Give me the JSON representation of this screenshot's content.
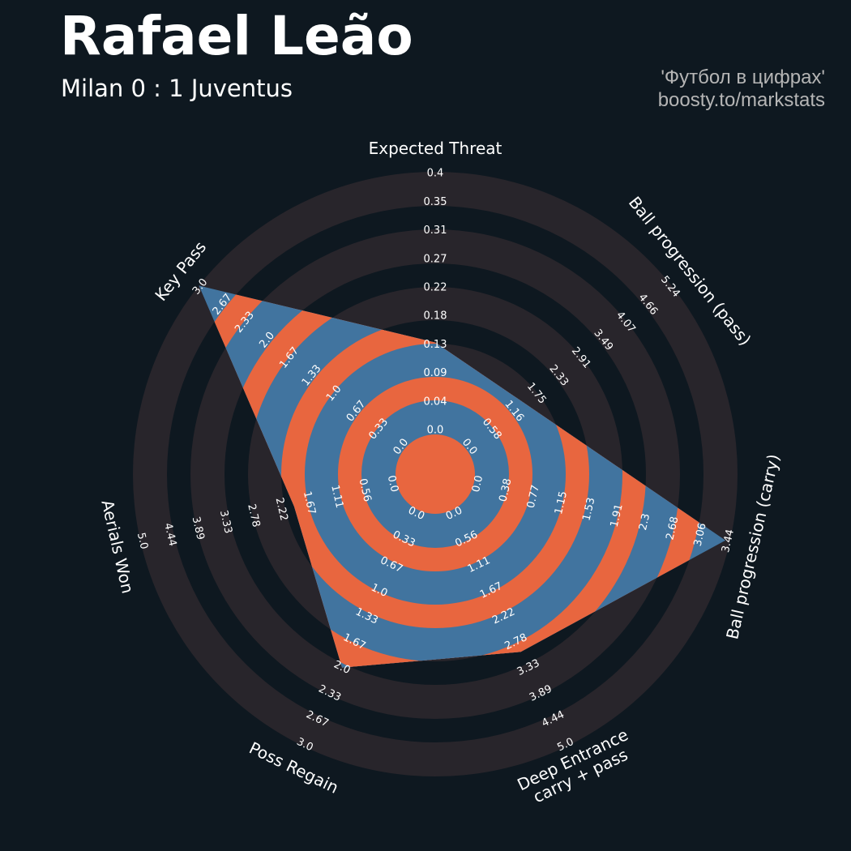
{
  "header": {
    "title": "Rafael Leão",
    "subtitle": "Milan 0 : 1 Juventus",
    "credit_line1": "'Футбол в цифрах'",
    "credit_line2": "boosty.to/markstats"
  },
  "colors": {
    "background": "#0e1820",
    "ring_outside": "#28252b",
    "ring_inside_a": "#41749f",
    "ring_inside_b": "#e8663f",
    "tick_text": "#ffffff"
  },
  "chart_data": {
    "type": "radar",
    "params": [
      {
        "label": [
          "Expected Threat"
        ],
        "low": 0,
        "high": 0.4,
        "value": 0.14,
        "ticks": [
          "0.0",
          "0.04",
          "0.09",
          "0.13",
          "0.18",
          "0.22",
          "0.27",
          "0.31",
          "0.35",
          "0.4"
        ]
      },
      {
        "label": [
          "Ball progression (pass)"
        ],
        "low": 0,
        "high": 5.24,
        "value": 1.48,
        "ticks": [
          "0.0",
          "0.58",
          "1.16",
          "1.75",
          "2.33",
          "2.91",
          "3.49",
          "4.07",
          "4.66",
          "5.24"
        ]
      },
      {
        "label": [
          "Ball progression (carry)"
        ],
        "low": 0,
        "high": 3.44,
        "value": 3.38,
        "ticks": [
          "0.0",
          "0.38",
          "0.77",
          "1.15",
          "1.53",
          "1.91",
          "2.3",
          "2.68",
          "3.06",
          "3.44"
        ]
      },
      {
        "label": [
          "Deep Entrance",
          "carry + pass"
        ],
        "low": 0,
        "high": 5.0,
        "value": 3.0,
        "ticks": [
          "0.0",
          "0.56",
          "1.11",
          "1.67",
          "2.22",
          "2.78",
          "3.33",
          "3.89",
          "4.44",
          "5.0"
        ]
      },
      {
        "label": [
          "Poss Regain"
        ],
        "low": 0,
        "high": 3.0,
        "value": 2.0,
        "ticks": [
          "0.0",
          "0.33",
          "0.67",
          "1.0",
          "1.33",
          "1.67",
          "2.0",
          "2.33",
          "2.67",
          "3.0"
        ]
      },
      {
        "label": [
          "Aerials Won"
        ],
        "low": 0,
        "high": 5.0,
        "value": 2.0,
        "ticks": [
          "0.0",
          "0.56",
          "1.11",
          "1.67",
          "2.22",
          "2.78",
          "3.33",
          "3.89",
          "4.44",
          "5.0"
        ]
      },
      {
        "label": [
          "Key Pass"
        ],
        "low": 0,
        "high": 3.0,
        "value": 3.0,
        "ticks": [
          "0.0",
          "0.33",
          "0.67",
          "1.0",
          "1.33",
          "1.67",
          "2.0",
          "2.33",
          "2.67",
          "3.0"
        ]
      }
    ]
  }
}
